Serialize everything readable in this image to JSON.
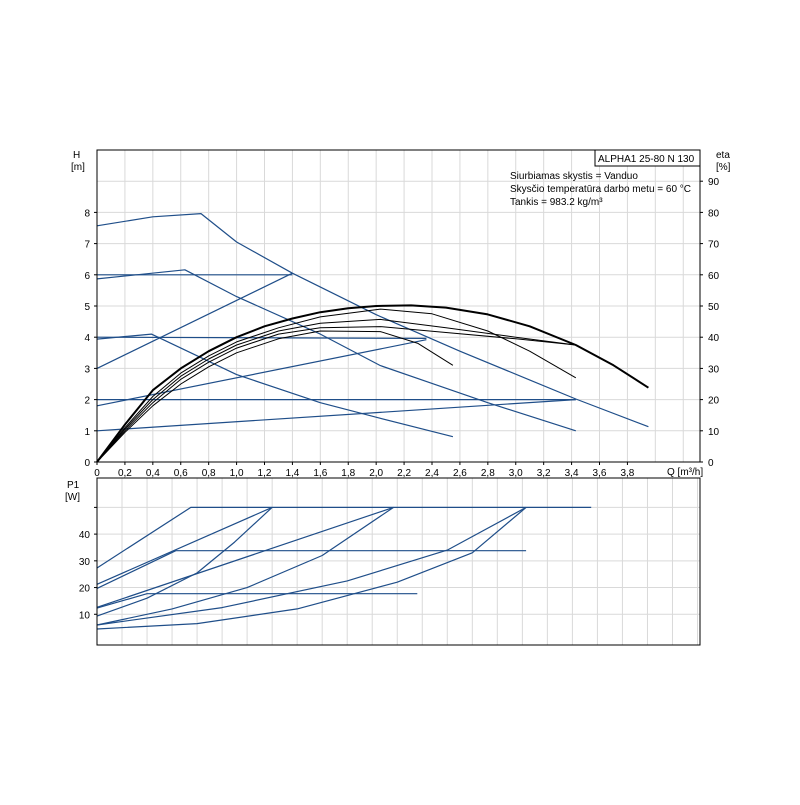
{
  "title_box": "ALPHA1 25-80 N 130",
  "info": [
    "Siurbiamas skystis = Vanduo",
    "Skysčio temperatūra darbo metu = 60 °C",
    "Tankis = 983.2 kg/m³"
  ],
  "colors": {
    "control_curve": "#1f4e89",
    "efficiency_curve": "#000000",
    "grid": "#d9d9d9"
  },
  "chart_data": [
    {
      "type": "line",
      "xlabel": "Q [m³/h]",
      "ylabel": "H\n[m]",
      "ylabel_lines": [
        "H",
        "[m]"
      ],
      "y2label_lines": [
        "eta",
        "[%]"
      ],
      "xlim": [
        0,
        4.32
      ],
      "ylim": [
        0,
        10
      ],
      "y2lim": [
        0,
        100
      ],
      "xticks": [
        "0",
        "0,2",
        "0,4",
        "0,6",
        "0,8",
        "1,0",
        "1,2",
        "1,4",
        "1,6",
        "1,8",
        "2,0",
        "2,2",
        "2,4",
        "2,6",
        "2,8",
        "3,0",
        "3,2",
        "3,4",
        "3,6",
        "3,8"
      ],
      "xtick_values": [
        0,
        0.2,
        0.4,
        0.6,
        0.8,
        1.0,
        1.2,
        1.4,
        1.6,
        1.8,
        2.0,
        2.2,
        2.4,
        2.6,
        2.8,
        3.0,
        3.2,
        3.4,
        3.6,
        3.8
      ],
      "yticks": [
        0,
        1,
        2,
        3,
        4,
        5,
        6,
        7,
        8
      ],
      "y2ticks": [
        0,
        10,
        20,
        30,
        40,
        50,
        60,
        70,
        80,
        90
      ],
      "grid": true,
      "head_curves": [
        {
          "points": [
            [
              0,
              7.57
            ],
            [
              0.4,
              7.86
            ],
            [
              0.745,
              7.96
            ],
            [
              1.0,
              7.05
            ],
            [
              1.4,
              6.05
            ],
            [
              2.0,
              4.72
            ],
            [
              2.6,
              3.55
            ],
            [
              3.43,
              2.02
            ],
            [
              3.95,
              1.13
            ]
          ]
        },
        {
          "points": [
            [
              0,
              6.0
            ],
            [
              1.4,
              6.0
            ]
          ]
        },
        {
          "points": [
            [
              0,
              5.87
            ],
            [
              0.63,
              6.16
            ],
            [
              1.0,
              5.3
            ],
            [
              1.6,
              4.1
            ],
            [
              2.03,
              3.09
            ],
            [
              2.8,
              1.9
            ],
            [
              3.43,
              1.0
            ]
          ]
        },
        {
          "points": [
            [
              0,
              3.0
            ],
            [
              1.4,
              6.05
            ]
          ]
        },
        {
          "points": [
            [
              0,
              4.0
            ],
            [
              2.36,
              3.96
            ]
          ]
        },
        {
          "points": [
            [
              0,
              3.94
            ],
            [
              0.39,
              4.1
            ],
            [
              1.0,
              2.8
            ],
            [
              1.6,
              1.9
            ],
            [
              2.03,
              1.4
            ],
            [
              2.55,
              0.81
            ]
          ]
        },
        {
          "points": [
            [
              0,
              1.8
            ],
            [
              2.36,
              3.92
            ]
          ]
        },
        {
          "points": [
            [
              0,
              2.0
            ],
            [
              3.43,
              2.0
            ]
          ]
        },
        {
          "points": [
            [
              0,
              1.0
            ],
            [
              3.43,
              2.0
            ]
          ]
        }
      ],
      "efficiency_curves": [
        {
          "axis": "eta",
          "heavy": true,
          "points": [
            [
              0,
              0
            ],
            [
              0.2,
              12
            ],
            [
              0.4,
              23
            ],
            [
              0.6,
              30
            ],
            [
              0.8,
              35.5
            ],
            [
              1.0,
              40
            ],
            [
              1.2,
              43.5
            ],
            [
              1.4,
              46
            ],
            [
              1.6,
              48
            ],
            [
              1.8,
              49.3
            ],
            [
              2.0,
              50
            ],
            [
              2.25,
              50.2
            ],
            [
              2.5,
              49.5
            ],
            [
              2.8,
              47.3
            ],
            [
              3.1,
              43.5
            ],
            [
              3.43,
              37.5
            ],
            [
              3.7,
              31
            ],
            [
              3.95,
              23.8
            ]
          ]
        },
        {
          "axis": "eta",
          "points": [
            [
              0,
              0
            ],
            [
              0.2,
              11
            ],
            [
              0.4,
              21
            ],
            [
              0.6,
              28.5
            ],
            [
              0.8,
              34
            ],
            [
              1.0,
              38.5
            ],
            [
              1.3,
              43
            ],
            [
              1.6,
              46.5
            ],
            [
              2.03,
              49
            ],
            [
              2.4,
              47.5
            ],
            [
              2.8,
              42
            ],
            [
              3.1,
              35.5
            ],
            [
              3.43,
              27
            ]
          ]
        },
        {
          "axis": "eta",
          "points": [
            [
              0,
              0
            ],
            [
              0.2,
              10.5
            ],
            [
              0.4,
              20
            ],
            [
              0.6,
              27.5
            ],
            [
              0.8,
              33
            ],
            [
              1.0,
              37.5
            ],
            [
              1.3,
              42
            ],
            [
              1.6,
              44.5
            ],
            [
              2.03,
              45.7
            ],
            [
              2.5,
              43
            ],
            [
              3.0,
              40
            ],
            [
              3.43,
              37.5
            ]
          ]
        },
        {
          "axis": "eta",
          "points": [
            [
              0,
              0
            ],
            [
              0.2,
              10
            ],
            [
              0.4,
              19
            ],
            [
              0.6,
              26.5
            ],
            [
              0.8,
              32
            ],
            [
              1.0,
              36.5
            ],
            [
              1.3,
              41
            ],
            [
              1.6,
              43
            ],
            [
              2.03,
              43.4
            ],
            [
              2.5,
              41.5
            ],
            [
              3.0,
              39.5
            ],
            [
              3.43,
              37.5
            ]
          ]
        },
        {
          "axis": "eta",
          "points": [
            [
              0,
              0
            ],
            [
              0.2,
              9.5
            ],
            [
              0.4,
              18
            ],
            [
              0.6,
              25
            ],
            [
              0.8,
              30.5
            ],
            [
              1.0,
              35
            ],
            [
              1.3,
              39.5
            ],
            [
              1.6,
              42
            ],
            [
              2.03,
              41.8
            ],
            [
              2.3,
              38
            ],
            [
              2.55,
              31
            ]
          ]
        }
      ]
    },
    {
      "type": "line",
      "ylabel_lines": [
        "P1",
        "[W]"
      ],
      "xlim": [
        0,
        4.82
      ],
      "ylim": [
        -1.5,
        61
      ],
      "yticks": [
        10,
        20,
        30,
        40
      ],
      "ytick_unlabeled": [
        50
      ],
      "grid": true,
      "power_curves": [
        {
          "points": [
            [
              0,
              27.3
            ],
            [
              0.75,
              50
            ],
            [
              3.95,
              50
            ]
          ]
        },
        {
          "points": [
            [
              0,
              21.2
            ],
            [
              1.4,
              50
            ]
          ]
        },
        {
          "points": [
            [
              0,
              19.7
            ],
            [
              0.63,
              33.8
            ],
            [
              3.43,
              33.8
            ]
          ]
        },
        {
          "points": [
            [
              0,
              12.6
            ],
            [
              2.37,
              50
            ]
          ]
        },
        {
          "points": [
            [
              0,
              12.3
            ],
            [
              0.4,
              17.7
            ],
            [
              2.56,
              17.7
            ]
          ]
        },
        {
          "points": [
            [
              0,
              9.3
            ],
            [
              0.4,
              16
            ],
            [
              0.8,
              25.5
            ],
            [
              1.1,
              37
            ],
            [
              1.4,
              50
            ]
          ]
        },
        {
          "points": [
            [
              0,
              6
            ],
            [
              0.6,
              12
            ],
            [
              1.2,
              20
            ],
            [
              1.8,
              32
            ],
            [
              2.37,
              50
            ]
          ]
        },
        {
          "points": [
            [
              0,
              6
            ],
            [
              1.0,
              12.5
            ],
            [
              2.0,
              22.5
            ],
            [
              2.8,
              34
            ],
            [
              3.43,
              50
            ]
          ]
        },
        {
          "points": [
            [
              0,
              4.5
            ],
            [
              0.8,
              6.5
            ],
            [
              1.6,
              12
            ],
            [
              2.4,
              22
            ],
            [
              3.0,
              33
            ],
            [
              3.43,
              50
            ]
          ]
        }
      ]
    }
  ]
}
